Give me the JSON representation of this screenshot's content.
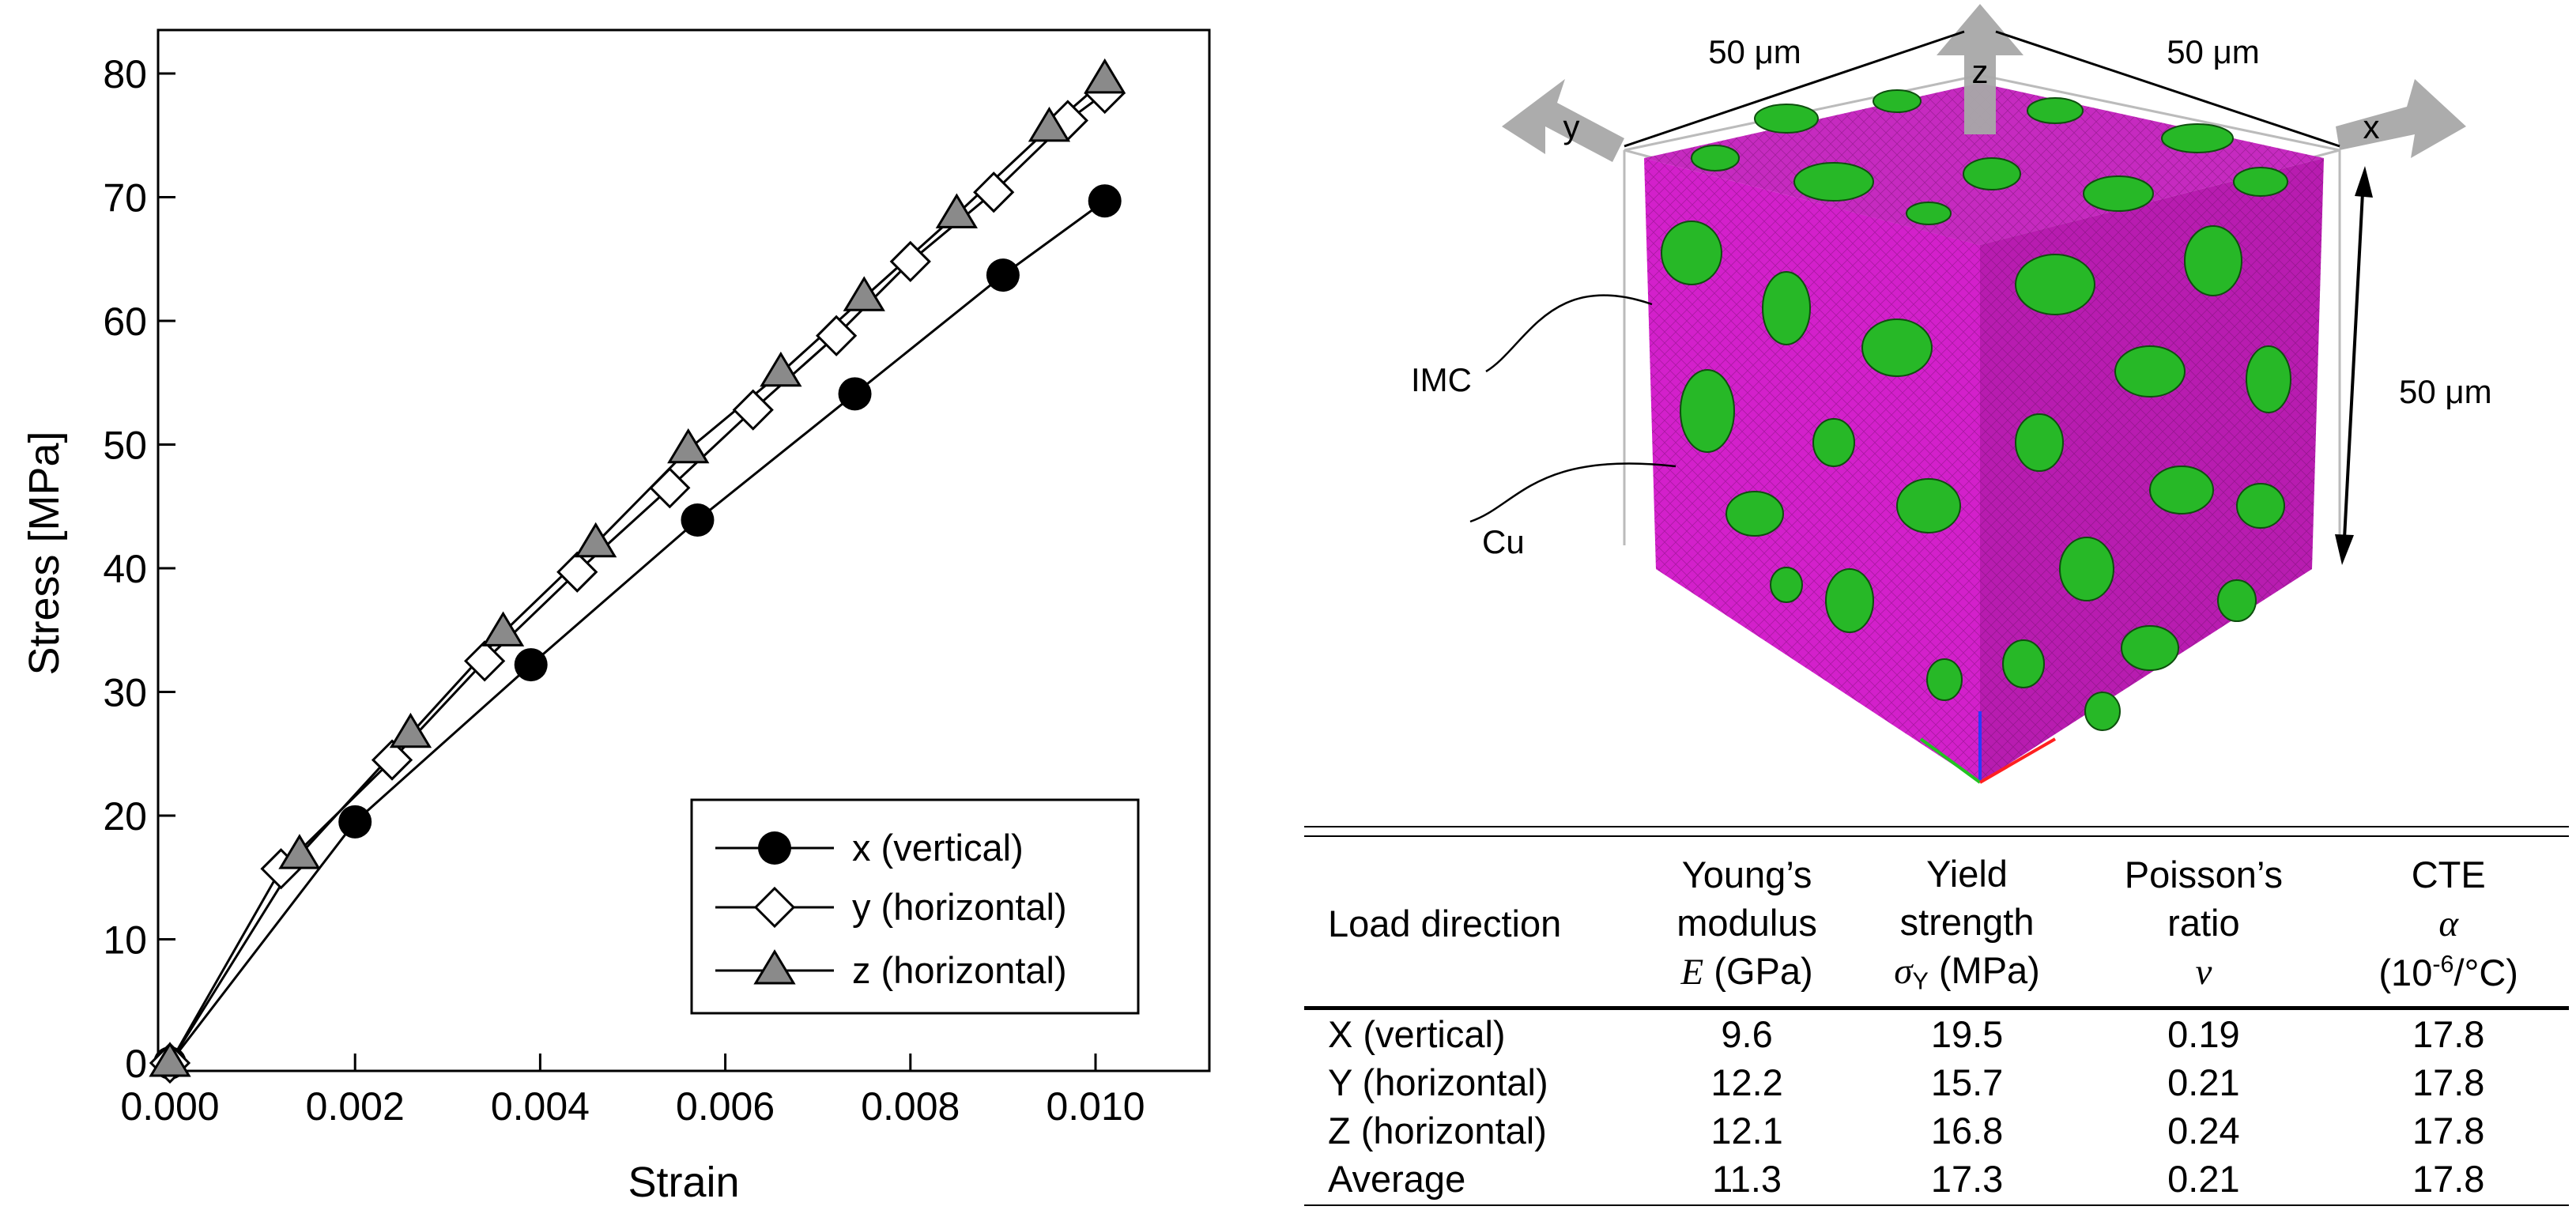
{
  "chart_data": {
    "type": "line",
    "xlabel": "Strain",
    "ylabel": "Stress [MPa]",
    "xlim": [
      0.0,
      0.0108
    ],
    "ylim": [
      0,
      85
    ],
    "xticks": [
      "0.000",
      "0.002",
      "0.004",
      "0.006",
      "0.008",
      "0.010"
    ],
    "yticks": [
      "0",
      "10",
      "20",
      "30",
      "40",
      "50",
      "60",
      "70",
      "80"
    ],
    "legend_position": "bottom-right",
    "series": [
      {
        "name": "x (vertical)",
        "marker": "filled-circle",
        "x": [
          0.0,
          0.002,
          0.0039,
          0.0057,
          0.0074,
          0.009,
          0.0101
        ],
        "y": [
          0,
          19.5,
          32.2,
          43.9,
          54.1,
          63.7,
          69.7
        ]
      },
      {
        "name": "y (horizontal)",
        "marker": "open-diamond",
        "x": [
          0.0,
          0.0012,
          0.0024,
          0.0034,
          0.0044,
          0.0054,
          0.0063,
          0.0072,
          0.008,
          0.0089,
          0.0097,
          0.0101
        ],
        "y": [
          0,
          15.7,
          24.5,
          32.5,
          39.7,
          46.5,
          52.8,
          58.8,
          64.8,
          70.4,
          76.2,
          78.4
        ]
      },
      {
        "name": "z (horizontal)",
        "marker": "filled-triangle",
        "x": [
          0.0,
          0.0014,
          0.0026,
          0.0036,
          0.0046,
          0.0056,
          0.0066,
          0.0075,
          0.0085,
          0.0095,
          0.0101
        ],
        "y": [
          0,
          16.8,
          26.6,
          34.8,
          42.0,
          49.6,
          55.8,
          61.9,
          68.6,
          75.6,
          79.5
        ]
      }
    ]
  },
  "figure": {
    "labels": {
      "edge_y": "50 μm",
      "edge_x": "50 μm",
      "edge_z": "50 μm",
      "axis_y": "y",
      "axis_z": "z",
      "axis_x": "x",
      "imc": "IMC",
      "cu": "Cu"
    },
    "colors": {
      "imc": "#e21fd8",
      "cu": "#27b827",
      "arrow": "#a8a8a8"
    }
  },
  "table": {
    "header": {
      "load_direction": "Load direction",
      "youngs_line1": "Young’s",
      "youngs_line2": "modulus",
      "youngs_symbol": "E",
      "youngs_unit": "(GPa)",
      "yield_line1": "Yield",
      "yield_line2": "strength",
      "yield_symbol": "σ",
      "yield_subscript": "Y",
      "yield_unit": "(MPa)",
      "poisson_line1": "Poisson’s",
      "poisson_line2": "ratio",
      "poisson_symbol": "ν",
      "cte_line1": "CTE",
      "cte_symbol": "α",
      "cte_unit_pre": "(10",
      "cte_unit_exp": "-6",
      "cte_unit_post": "/°C)"
    },
    "rows": [
      {
        "direction": "X (vertical)",
        "E": "9.6",
        "sigma": "19.5",
        "nu": "0.19",
        "cte": "17.8"
      },
      {
        "direction": "Y (horizontal)",
        "E": "12.2",
        "sigma": "15.7",
        "nu": "0.21",
        "cte": "17.8"
      },
      {
        "direction": "Z (horizontal)",
        "E": "12.1",
        "sigma": "16.8",
        "nu": "0.24",
        "cte": "17.8"
      },
      {
        "direction": "Average",
        "E": "11.3",
        "sigma": "17.3",
        "nu": "0.21",
        "cte": "17.8"
      }
    ]
  }
}
